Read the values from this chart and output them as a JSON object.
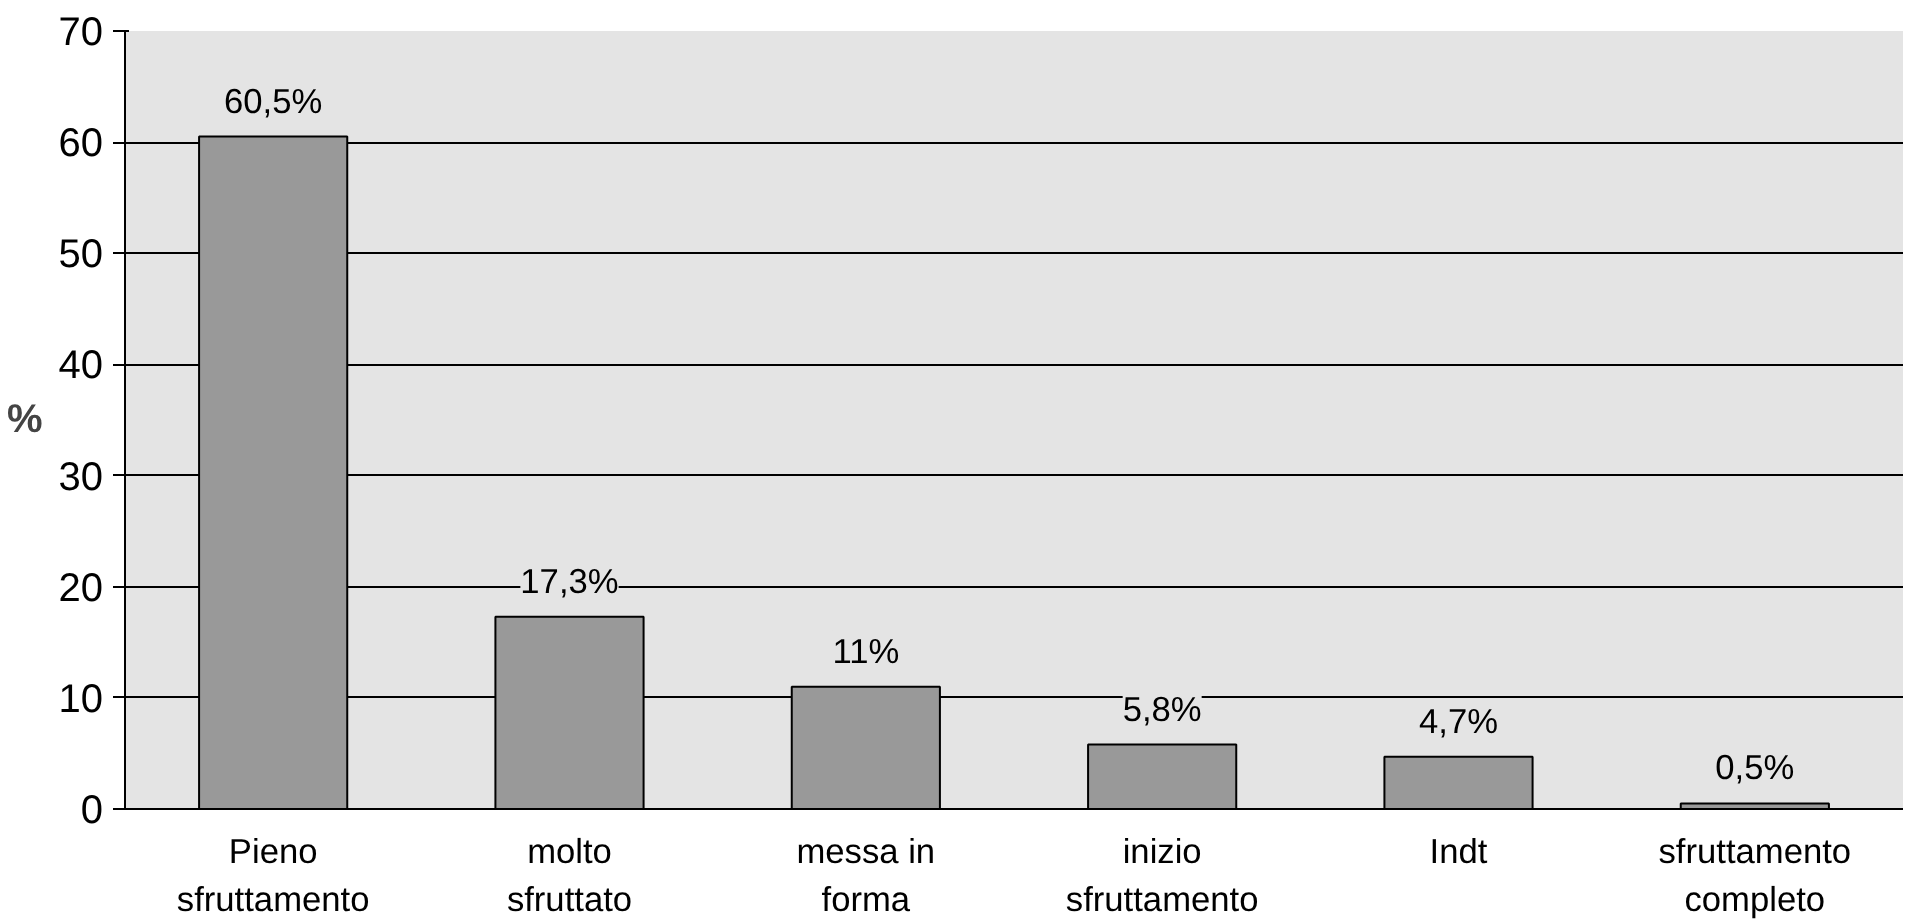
{
  "chart_data": {
    "type": "bar",
    "ylabel": "%",
    "categories": [
      "Pieno\nsfruttamento",
      "molto\nsfruttato",
      "messa in\nforma",
      "inizio\nsfruttamento",
      "Indt",
      "sfruttamento\ncompleto"
    ],
    "values": [
      60.5,
      17.3,
      11,
      5.8,
      4.7,
      0.5
    ],
    "value_labels": [
      "60,5%",
      "17,3%",
      "11%",
      "5,8%",
      "4,7%",
      "0,5%"
    ],
    "color": "#999999",
    "ylim": [
      0,
      70
    ],
    "yticks": [
      0,
      10,
      20,
      30,
      40,
      50,
      60,
      70
    ],
    "grid": "y"
  }
}
